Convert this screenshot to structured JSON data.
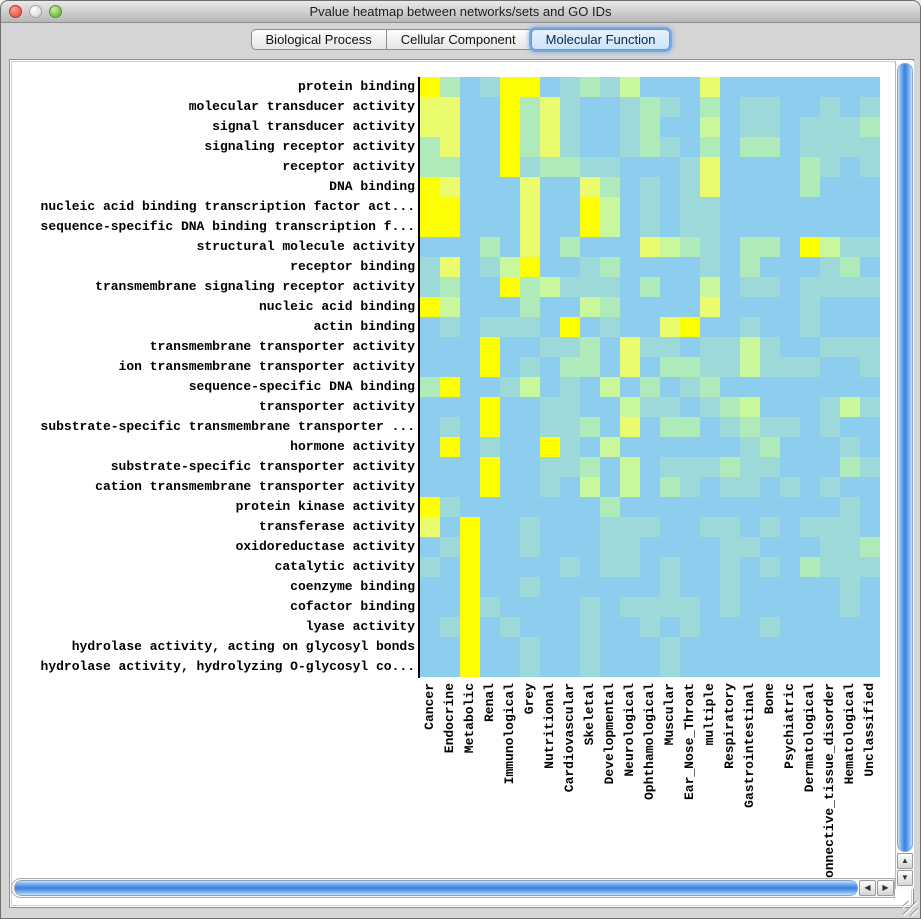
{
  "window": {
    "title": "Pvalue heatmap between networks/sets and GO IDs",
    "traffic_lights": [
      "close-button",
      "minimize-button",
      "zoom-button"
    ]
  },
  "tabs": {
    "items": [
      "Biological Process",
      "Cellular Component",
      "Molecular Function"
    ],
    "selected": "Molecular Function"
  },
  "scroll_icons": {
    "up": "▲",
    "down": "▼",
    "left": "◀",
    "right": "▶"
  },
  "chart_data": {
    "type": "heatmap",
    "title": "Pvalue heatmap between networks/sets and GO IDs",
    "xlabel": "",
    "ylabel": "",
    "grid": false,
    "legend_position": "none",
    "rows": [
      "protein binding",
      "molecular transducer activity",
      "signal transducer activity",
      "signaling receptor activity",
      "receptor activity",
      "DNA binding",
      "nucleic acid binding transcription factor act...",
      "sequence-specific DNA binding transcription f...",
      "structural molecule activity",
      "receptor binding",
      "transmembrane signaling receptor activity",
      "nucleic acid binding",
      "actin binding",
      "transmembrane transporter activity",
      "ion transmembrane transporter activity",
      "sequence-specific DNA binding",
      "transporter activity",
      "substrate-specific transmembrane transporter ...",
      "hormone activity",
      "substrate-specific transporter activity",
      "cation transmembrane transporter activity",
      "protein kinase activity",
      "transferase activity",
      "oxidoreductase activity",
      "catalytic activity",
      "coenzyme binding",
      "cofactor binding",
      "lyase activity",
      "hydrolase activity, acting on glycosyl bonds",
      "hydrolase activity, hydrolyzing O-glycosyl co..."
    ],
    "columns": [
      "Cancer",
      "Endocrine",
      "Metabolic",
      "Renal",
      "Immunological",
      "Grey",
      "Nutritional",
      "Cardiovascular",
      "Skeletal",
      "Developmental",
      "Neurological",
      "Ophthamological",
      "Muscular",
      "Ear_Nose_Throat",
      "multiple",
      "Respiratory",
      "Gastrointestinal",
      "Bone",
      "Psychiatric",
      "Dermatological",
      "Connective_tissue_disorder",
      "Hematological",
      "Unclassified"
    ],
    "value_scale": "significance level 0 (high p-value, blue) to 5 (low p-value, yellow)",
    "palette": {
      "0": "#8dcdee",
      "1": "#9ed9da",
      "2": "#aeeaba",
      "3": "#c9f79b",
      "4": "#eafc6d",
      "5": "#ffff03"
    },
    "levels": [
      [
        5,
        2,
        0,
        1,
        5,
        5,
        0,
        1,
        2,
        1,
        3,
        0,
        0,
        0,
        4,
        0,
        0,
        0,
        0,
        0,
        0,
        0,
        0
      ],
      [
        4,
        4,
        0,
        0,
        5,
        2,
        4,
        1,
        0,
        0,
        1,
        2,
        1,
        0,
        2,
        0,
        1,
        1,
        0,
        0,
        1,
        0,
        1
      ],
      [
        4,
        4,
        0,
        0,
        5,
        2,
        4,
        1,
        0,
        0,
        1,
        2,
        0,
        0,
        3,
        0,
        1,
        1,
        0,
        1,
        1,
        1,
        2
      ],
      [
        2,
        4,
        0,
        0,
        5,
        2,
        4,
        1,
        0,
        0,
        1,
        2,
        1,
        0,
        2,
        0,
        2,
        2,
        0,
        1,
        1,
        1,
        1
      ],
      [
        2,
        2,
        0,
        0,
        5,
        1,
        2,
        2,
        1,
        1,
        0,
        0,
        0,
        1,
        4,
        0,
        0,
        0,
        0,
        2,
        1,
        0,
        1
      ],
      [
        5,
        4,
        0,
        0,
        0,
        4,
        0,
        0,
        4,
        2,
        0,
        1,
        0,
        1,
        4,
        0,
        0,
        0,
        0,
        2,
        0,
        0,
        0
      ],
      [
        5,
        5,
        0,
        0,
        0,
        4,
        0,
        0,
        5,
        3,
        0,
        1,
        0,
        1,
        1,
        0,
        0,
        0,
        0,
        0,
        0,
        0,
        0
      ],
      [
        5,
        5,
        0,
        0,
        0,
        4,
        0,
        0,
        5,
        3,
        0,
        1,
        0,
        1,
        1,
        0,
        0,
        0,
        0,
        0,
        0,
        0,
        0
      ],
      [
        0,
        0,
        0,
        2,
        0,
        4,
        0,
        2,
        0,
        0,
        0,
        4,
        3,
        2,
        1,
        0,
        2,
        2,
        0,
        5,
        3,
        1,
        1
      ],
      [
        1,
        4,
        0,
        1,
        3,
        5,
        0,
        0,
        1,
        2,
        0,
        0,
        0,
        0,
        1,
        0,
        2,
        0,
        0,
        0,
        1,
        2,
        0
      ],
      [
        1,
        2,
        0,
        0,
        5,
        2,
        3,
        1,
        1,
        1,
        0,
        2,
        0,
        0,
        3,
        0,
        1,
        1,
        0,
        1,
        1,
        1,
        1
      ],
      [
        5,
        3,
        0,
        0,
        0,
        2,
        0,
        0,
        3,
        2,
        0,
        0,
        0,
        0,
        4,
        0,
        0,
        0,
        0,
        1,
        0,
        0,
        0
      ],
      [
        0,
        1,
        0,
        1,
        1,
        1,
        0,
        5,
        0,
        1,
        0,
        0,
        4,
        5,
        0,
        0,
        1,
        0,
        0,
        1,
        0,
        0,
        0
      ],
      [
        0,
        0,
        0,
        5,
        0,
        0,
        1,
        1,
        2,
        0,
        4,
        1,
        1,
        0,
        1,
        1,
        3,
        1,
        0,
        0,
        1,
        1,
        1
      ],
      [
        0,
        0,
        0,
        5,
        0,
        1,
        0,
        2,
        2,
        0,
        4,
        0,
        2,
        2,
        1,
        1,
        3,
        1,
        1,
        1,
        0,
        0,
        1
      ],
      [
        2,
        5,
        0,
        0,
        1,
        3,
        0,
        1,
        0,
        3,
        0,
        2,
        0,
        1,
        2,
        0,
        0,
        0,
        0,
        0,
        0,
        0,
        0
      ],
      [
        0,
        0,
        0,
        5,
        0,
        0,
        1,
        1,
        0,
        0,
        3,
        1,
        1,
        0,
        1,
        2,
        3,
        0,
        0,
        0,
        1,
        3,
        1
      ],
      [
        0,
        1,
        0,
        5,
        0,
        0,
        1,
        1,
        2,
        0,
        4,
        0,
        2,
        2,
        0,
        1,
        2,
        1,
        1,
        0,
        1,
        0,
        0
      ],
      [
        0,
        5,
        0,
        1,
        0,
        0,
        5,
        1,
        0,
        3,
        0,
        0,
        0,
        0,
        0,
        0,
        1,
        2,
        0,
        0,
        0,
        1,
        0
      ],
      [
        0,
        0,
        0,
        5,
        0,
        0,
        1,
        1,
        2,
        0,
        3,
        0,
        1,
        1,
        1,
        2,
        1,
        1,
        0,
        0,
        0,
        2,
        1
      ],
      [
        0,
        0,
        0,
        5,
        0,
        0,
        1,
        0,
        3,
        0,
        3,
        0,
        2,
        1,
        0,
        1,
        1,
        0,
        1,
        0,
        1,
        0,
        0
      ],
      [
        5,
        1,
        0,
        0,
        0,
        0,
        0,
        0,
        0,
        2,
        0,
        0,
        0,
        0,
        0,
        0,
        0,
        0,
        0,
        0,
        0,
        1,
        0
      ],
      [
        4,
        0,
        5,
        0,
        0,
        1,
        0,
        0,
        0,
        1,
        1,
        1,
        0,
        0,
        1,
        1,
        0,
        1,
        0,
        1,
        1,
        1,
        0
      ],
      [
        0,
        1,
        5,
        0,
        0,
        1,
        0,
        0,
        0,
        1,
        1,
        0,
        0,
        0,
        0,
        1,
        1,
        0,
        0,
        0,
        1,
        1,
        2
      ],
      [
        1,
        0,
        5,
        0,
        0,
        0,
        0,
        1,
        0,
        1,
        1,
        0,
        1,
        0,
        0,
        1,
        0,
        1,
        0,
        2,
        1,
        1,
        1
      ],
      [
        0,
        0,
        5,
        0,
        0,
        1,
        0,
        0,
        0,
        0,
        0,
        0,
        1,
        0,
        0,
        1,
        0,
        0,
        0,
        0,
        0,
        1,
        0
      ],
      [
        0,
        0,
        5,
        1,
        0,
        0,
        0,
        0,
        1,
        0,
        1,
        1,
        1,
        1,
        0,
        1,
        0,
        0,
        0,
        0,
        0,
        1,
        0
      ],
      [
        0,
        1,
        5,
        0,
        1,
        0,
        0,
        0,
        1,
        0,
        0,
        1,
        0,
        1,
        0,
        0,
        0,
        1,
        0,
        0,
        0,
        0,
        0
      ],
      [
        0,
        0,
        5,
        0,
        0,
        1,
        0,
        0,
        1,
        0,
        0,
        0,
        1,
        0,
        0,
        0,
        0,
        0,
        0,
        0,
        0,
        0,
        0
      ],
      [
        0,
        0,
        5,
        0,
        0,
        1,
        0,
        0,
        1,
        0,
        0,
        0,
        1,
        0,
        0,
        0,
        0,
        0,
        0,
        0,
        0,
        0,
        0
      ]
    ]
  }
}
